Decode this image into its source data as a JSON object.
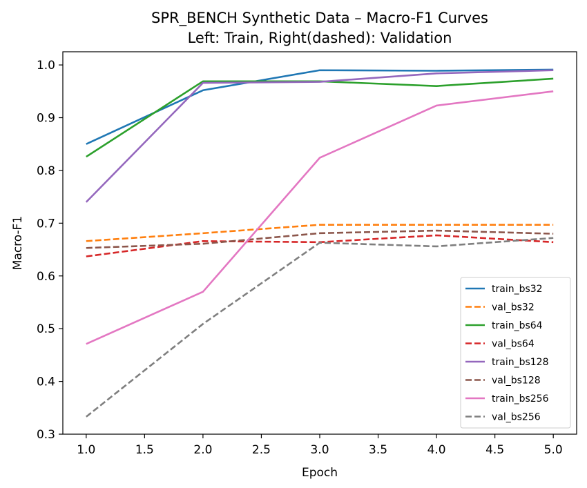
{
  "chart_data": {
    "type": "line",
    "title": "SPR_BENCH Synthetic Data – Macro-F1 Curves",
    "subtitle": "Left: Train, Right(dashed): Validation",
    "xlabel": "Epoch",
    "ylabel": "Macro-F1",
    "xlim": [
      0.8,
      5.2
    ],
    "ylim": [
      0.3,
      1.025
    ],
    "xticks": [
      1.0,
      1.5,
      2.0,
      2.5,
      3.0,
      3.5,
      4.0,
      4.5,
      5.0
    ],
    "xtick_labels": [
      "1.0",
      "1.5",
      "2.0",
      "2.5",
      "3.0",
      "3.5",
      "4.0",
      "4.5",
      "5.0"
    ],
    "yticks": [
      0.3,
      0.4,
      0.5,
      0.6,
      0.7,
      0.8,
      0.9,
      1.0
    ],
    "ytick_labels": [
      "0.3",
      "0.4",
      "0.5",
      "0.6",
      "0.7",
      "0.8",
      "0.9",
      "1.0"
    ],
    "grid": false,
    "legend_position": "lower-right",
    "x": [
      1,
      2,
      3,
      4,
      5
    ],
    "series": [
      {
        "name": "train_bs32",
        "values": [
          0.85,
          0.952,
          0.99,
          0.989,
          0.991
        ],
        "color": "#1f77b4",
        "dashed": false
      },
      {
        "name": "val_bs32",
        "values": [
          0.666,
          0.681,
          0.697,
          0.697,
          0.697
        ],
        "color": "#ff7f0e",
        "dashed": true
      },
      {
        "name": "train_bs64",
        "values": [
          0.826,
          0.969,
          0.969,
          0.96,
          0.974
        ],
        "color": "#2ca02c",
        "dashed": false
      },
      {
        "name": "val_bs64",
        "values": [
          0.637,
          0.666,
          0.664,
          0.677,
          0.664
        ],
        "color": "#d62728",
        "dashed": true
      },
      {
        "name": "train_bs128",
        "values": [
          0.74,
          0.966,
          0.968,
          0.984,
          0.99
        ],
        "color": "#9467bd",
        "dashed": false
      },
      {
        "name": "val_bs128",
        "values": [
          0.653,
          0.661,
          0.681,
          0.686,
          0.68
        ],
        "color": "#8c564b",
        "dashed": true
      },
      {
        "name": "train_bs256",
        "values": [
          0.471,
          0.57,
          0.824,
          0.923,
          0.95
        ],
        "color": "#e377c2",
        "dashed": false
      },
      {
        "name": "val_bs256",
        "values": [
          0.333,
          0.509,
          0.663,
          0.656,
          0.672
        ],
        "color": "#7f7f7f",
        "dashed": true
      }
    ]
  }
}
